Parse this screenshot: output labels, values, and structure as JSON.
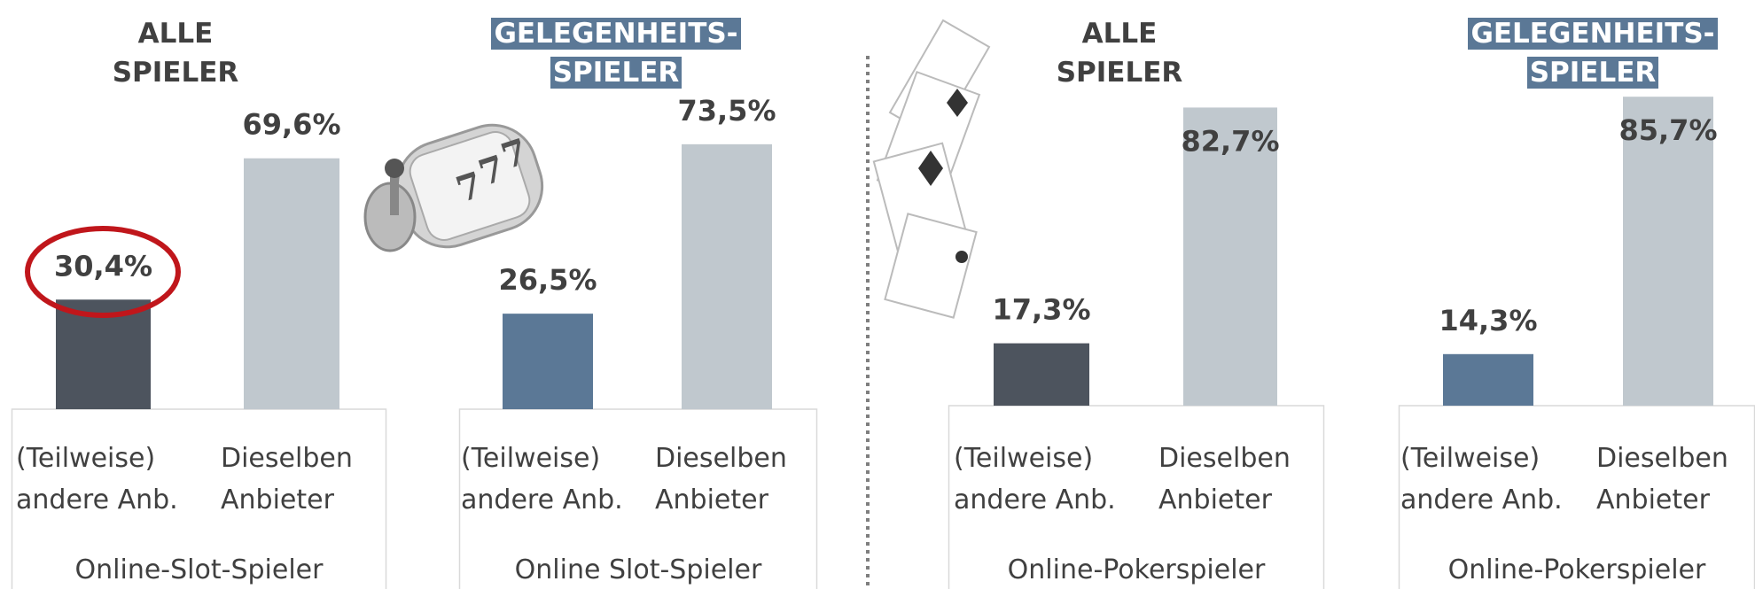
{
  "chart_data": [
    {
      "type": "bar",
      "title": "ALLE SPIELER",
      "xlabel": "Online-Slot-Spieler",
      "categories": [
        "(Teilweise) andere Anb.",
        "Dieselben Anbieter"
      ],
      "values": [
        30.4,
        69.6
      ],
      "value_labels": [
        "30,4%",
        "69,6%"
      ],
      "colors": [
        "#4d545e",
        "#c0c8ce"
      ]
    },
    {
      "type": "bar",
      "title": "GELEGENHEITS-SPIELER",
      "title_background": "#5b7896",
      "xlabel": "Online Slot-Spieler",
      "categories": [
        "(Teilweise) andere Anb.",
        "Dieselben Anbieter"
      ],
      "values": [
        26.5,
        73.5
      ],
      "value_labels": [
        "26,5%",
        "73,5%"
      ],
      "colors": [
        "#5b7896",
        "#c0c8ce"
      ]
    },
    {
      "type": "bar",
      "title": "ALLE SPIELER",
      "xlabel": "Online-Pokerspieler",
      "categories": [
        "(Teilweise) andere Anb.",
        "Dieselben Anbieter"
      ],
      "values": [
        17.3,
        82.7
      ],
      "value_labels": [
        "17,3%",
        "82,7%"
      ],
      "colors": [
        "#4d545e",
        "#c0c8ce"
      ]
    },
    {
      "type": "bar",
      "title": "GELEGENHEITS-SPIELER",
      "title_background": "#5b7896",
      "xlabel": "Online-Pokerspieler",
      "categories": [
        "(Teilweise) andere Anb.",
        "Dieselben Anbieter"
      ],
      "values": [
        14.3,
        85.7
      ],
      "value_labels": [
        "14,3%",
        "85,7%"
      ],
      "colors": [
        "#5b7896",
        "#c0c8ce"
      ]
    }
  ]
}
